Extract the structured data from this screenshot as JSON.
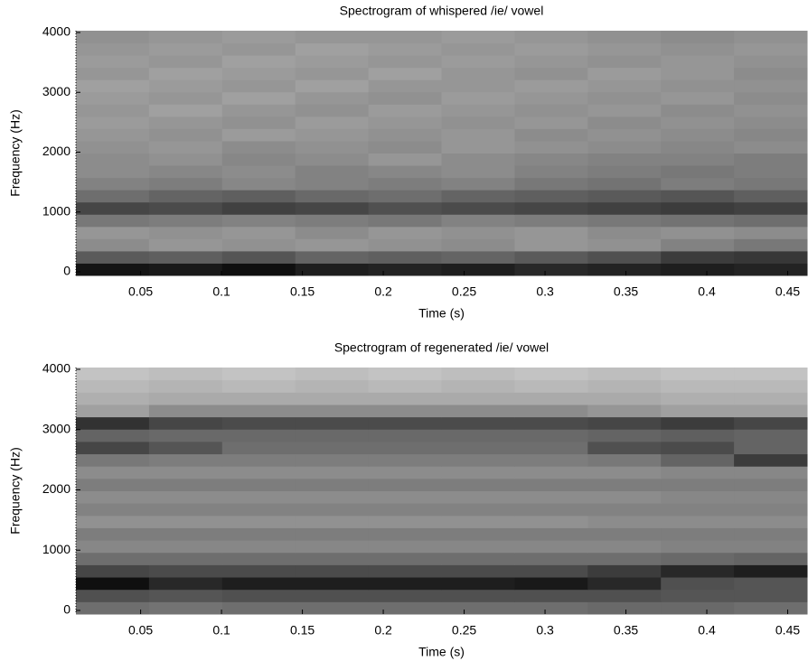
{
  "chart_data": [
    {
      "type": "heatmap",
      "title": "Spectrogram of whispered /ie/ vowel",
      "xlabel": "Time (s)",
      "ylabel": "Frequency (Hz)",
      "xlim": [
        0.01,
        0.462
      ],
      "ylim": [
        -60,
        4030
      ],
      "xticks": [
        0.05,
        0.1,
        0.15,
        0.2,
        0.25,
        0.3,
        0.35,
        0.4,
        0.45
      ],
      "yticks": [
        0,
        1000,
        2000,
        3000,
        4000
      ],
      "z": [
        [
          20,
          25,
          15,
          30,
          35,
          30,
          40,
          35,
          30,
          35
        ],
        [
          90,
          95,
          85,
          100,
          95,
          100,
          90,
          80,
          60,
          55
        ],
        [
          140,
          150,
          145,
          150,
          145,
          140,
          150,
          145,
          130,
          120
        ],
        [
          150,
          145,
          150,
          140,
          150,
          145,
          150,
          140,
          145,
          140
        ],
        [
          120,
          125,
          130,
          125,
          120,
          130,
          125,
          120,
          115,
          110
        ],
        [
          70,
          75,
          65,
          70,
          80,
          75,
          70,
          65,
          60,
          65
        ],
        [
          110,
          100,
          95,
          105,
          110,
          100,
          95,
          90,
          85,
          95
        ],
        [
          130,
          125,
          135,
          130,
          125,
          130,
          120,
          115,
          125,
          120
        ],
        [
          140,
          135,
          140,
          130,
          135,
          140,
          130,
          125,
          120,
          125
        ],
        [
          140,
          145,
          135,
          140,
          150,
          140,
          135,
          130,
          130,
          125
        ],
        [
          145,
          150,
          140,
          145,
          140,
          150,
          145,
          140,
          135,
          140
        ],
        [
          150,
          145,
          155,
          150,
          145,
          150,
          140,
          145,
          140,
          135
        ],
        [
          155,
          150,
          145,
          155,
          150,
          145,
          150,
          140,
          145,
          140
        ],
        [
          150,
          160,
          150,
          145,
          155,
          150,
          145,
          150,
          140,
          145
        ],
        [
          155,
          150,
          160,
          150,
          145,
          155,
          150,
          145,
          150,
          140
        ],
        [
          160,
          155,
          150,
          160,
          150,
          150,
          155,
          150,
          145,
          145
        ],
        [
          150,
          160,
          155,
          150,
          160,
          150,
          145,
          155,
          150,
          140
        ],
        [
          155,
          150,
          160,
          155,
          150,
          155,
          150,
          145,
          150,
          145
        ],
        [
          150,
          155,
          150,
          160,
          155,
          150,
          155,
          150,
          145,
          150
        ],
        [
          145,
          150,
          155,
          150,
          150,
          155,
          150,
          145,
          140,
          145
        ]
      ]
    },
    {
      "type": "heatmap",
      "title": "Spectrogram of regenerated /ie/ vowel",
      "xlabel": "Time (s)",
      "ylabel": "Frequency (Hz)",
      "xlim": [
        0.01,
        0.462
      ],
      "ylim": [
        -60,
        4030
      ],
      "xticks": [
        0.05,
        0.1,
        0.15,
        0.2,
        0.25,
        0.3,
        0.35,
        0.4,
        0.45
      ],
      "yticks": [
        0,
        1000,
        2000,
        3000,
        4000
      ],
      "z": [
        [
          110,
          115,
          110,
          110,
          110,
          110,
          110,
          105,
          105,
          110
        ],
        [
          80,
          85,
          80,
          80,
          80,
          80,
          80,
          80,
          85,
          85
        ],
        [
          15,
          40,
          30,
          30,
          30,
          30,
          25,
          40,
          80,
          85
        ],
        [
          70,
          75,
          75,
          75,
          75,
          75,
          75,
          60,
          40,
          30
        ],
        [
          110,
          110,
          110,
          110,
          110,
          110,
          110,
          110,
          105,
          100
        ],
        [
          135,
          135,
          135,
          135,
          135,
          135,
          135,
          135,
          130,
          130
        ],
        [
          125,
          125,
          125,
          125,
          125,
          125,
          125,
          125,
          125,
          125
        ],
        [
          145,
          145,
          145,
          145,
          145,
          145,
          145,
          140,
          140,
          140
        ],
        [
          130,
          130,
          130,
          130,
          130,
          130,
          130,
          130,
          130,
          130
        ],
        [
          140,
          140,
          140,
          140,
          140,
          140,
          140,
          140,
          135,
          135
        ],
        [
          125,
          125,
          125,
          125,
          125,
          125,
          125,
          125,
          125,
          125
        ],
        [
          140,
          140,
          140,
          140,
          140,
          140,
          140,
          140,
          135,
          135
        ],
        [
          120,
          125,
          125,
          125,
          125,
          125,
          125,
          120,
          100,
          60
        ],
        [
          70,
          85,
          110,
          110,
          110,
          110,
          110,
          80,
          75,
          100
        ],
        [
          100,
          105,
          105,
          105,
          105,
          105,
          105,
          100,
          95,
          100
        ],
        [
          50,
          70,
          75,
          75,
          75,
          75,
          75,
          70,
          60,
          70
        ],
        [
          160,
          140,
          140,
          140,
          140,
          140,
          140,
          150,
          160,
          160
        ],
        [
          175,
          170,
          170,
          170,
          170,
          170,
          170,
          170,
          175,
          175
        ],
        [
          185,
          180,
          185,
          180,
          185,
          180,
          185,
          180,
          185,
          185
        ],
        [
          195,
          190,
          195,
          190,
          195,
          190,
          195,
          190,
          195,
          195
        ]
      ]
    }
  ]
}
